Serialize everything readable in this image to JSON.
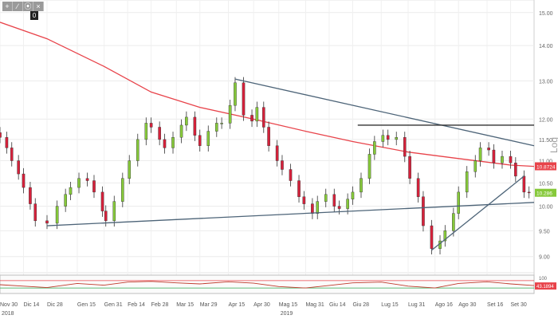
{
  "toolbar": {
    "buttons": [
      {
        "icon": "plus-icon",
        "glyph": "+"
      },
      {
        "icon": "pencil-icon",
        "glyph": "∕"
      },
      {
        "icon": "settings-icon",
        "glyph": "⦿"
      },
      {
        "icon": "close-icon",
        "glyph": "×"
      }
    ],
    "counter": "0"
  },
  "chart_data": {
    "type": "candlestick",
    "scale": "log",
    "ylabel": "Log",
    "ylim": [
      8.7,
      15.4
    ],
    "y_ticks": [
      9.0,
      9.5,
      10.0,
      10.5,
      11.0,
      11.5,
      12.0,
      13.0,
      14.0,
      15.0
    ],
    "y_tick_labels": [
      "9.00",
      "9.50",
      "10.00",
      "10.50",
      "11.00",
      "11.50",
      "12.00",
      "13.00",
      "14.00",
      "15.00"
    ],
    "x_range": [
      "2018-11-30",
      "2019-10-14"
    ],
    "x_ticks": [
      {
        "date": "2018-11-30",
        "label": "Nov 30"
      },
      {
        "date": "2018-12-14",
        "label": "Dic 14"
      },
      {
        "date": "2018-12-28",
        "label": "Dic 28"
      },
      {
        "date": "2019-01-15",
        "label": "Gen 15"
      },
      {
        "date": "2019-01-31",
        "label": "Gen 31"
      },
      {
        "date": "2019-02-14",
        "label": "Feb 14"
      },
      {
        "date": "2019-02-28",
        "label": "Feb 28"
      },
      {
        "date": "2019-03-15",
        "label": "Mar 15"
      },
      {
        "date": "2019-03-29",
        "label": "Mar 29"
      },
      {
        "date": "2019-04-15",
        "label": "Apr 15"
      },
      {
        "date": "2019-04-30",
        "label": "Apr 30"
      },
      {
        "date": "2019-05-15",
        "label": "Mag 15"
      },
      {
        "date": "2019-05-31",
        "label": "Mag 31"
      },
      {
        "date": "2019-06-14",
        "label": "Giu 14"
      },
      {
        "date": "2019-06-28",
        "label": "Giu 28"
      },
      {
        "date": "2019-07-15",
        "label": "Lug 15"
      },
      {
        "date": "2019-07-31",
        "label": "Lug 31"
      },
      {
        "date": "2019-08-16",
        "label": "Ago 16"
      },
      {
        "date": "2019-08-30",
        "label": "Ago 30"
      },
      {
        "date": "2019-09-16",
        "label": "Set 16"
      },
      {
        "date": "2019-09-30",
        "label": "Set 30"
      }
    ],
    "year_labels": [
      {
        "date": "2018-11-30",
        "label": "2018"
      },
      {
        "date": "2019-05-15",
        "label": "2019"
      }
    ],
    "closes": [
      [
        "2018-11-30",
        11.55
      ],
      [
        "2018-12-04",
        11.3
      ],
      [
        "2018-12-07",
        11.0
      ],
      [
        "2018-12-11",
        10.7
      ],
      [
        "2018-12-14",
        10.4
      ],
      [
        "2018-12-18",
        10.05
      ],
      [
        "2018-12-21",
        9.7
      ],
      [
        "2018-12-28",
        9.65
      ],
      [
        "2019-01-03",
        10.0
      ],
      [
        "2019-01-08",
        10.25
      ],
      [
        "2019-01-11",
        10.4
      ],
      [
        "2019-01-16",
        10.6
      ],
      [
        "2019-01-21",
        10.55
      ],
      [
        "2019-01-25",
        10.3
      ],
      [
        "2019-01-30",
        9.9
      ],
      [
        "2019-02-01",
        9.7
      ],
      [
        "2019-02-06",
        10.1
      ],
      [
        "2019-02-11",
        10.6
      ],
      [
        "2019-02-15",
        11.0
      ],
      [
        "2019-02-20",
        11.5
      ],
      [
        "2019-02-25",
        11.9
      ],
      [
        "2019-02-28",
        11.8
      ],
      [
        "2019-03-05",
        11.5
      ],
      [
        "2019-03-08",
        11.3
      ],
      [
        "2019-03-13",
        11.55
      ],
      [
        "2019-03-18",
        11.85
      ],
      [
        "2019-03-21",
        12.05
      ],
      [
        "2019-03-26",
        11.6
      ],
      [
        "2019-03-29",
        11.35
      ],
      [
        "2019-04-03",
        11.7
      ],
      [
        "2019-04-08",
        11.9
      ],
      [
        "2019-04-11",
        11.9
      ],
      [
        "2019-04-16",
        12.35
      ],
      [
        "2019-04-19",
        12.95
      ],
      [
        "2019-04-24",
        12.1
      ],
      [
        "2019-04-29",
        11.95
      ],
      [
        "2019-05-02",
        12.3
      ],
      [
        "2019-05-06",
        11.8
      ],
      [
        "2019-05-09",
        11.35
      ],
      [
        "2019-05-14",
        11.0
      ],
      [
        "2019-05-17",
        10.8
      ],
      [
        "2019-05-22",
        10.55
      ],
      [
        "2019-05-27",
        10.2
      ],
      [
        "2019-05-30",
        10.05
      ],
      [
        "2019-06-04",
        9.85
      ],
      [
        "2019-06-07",
        10.1
      ],
      [
        "2019-06-12",
        10.25
      ],
      [
        "2019-06-17",
        10.0
      ],
      [
        "2019-06-20",
        9.95
      ],
      [
        "2019-06-25",
        10.15
      ],
      [
        "2019-06-28",
        10.3
      ],
      [
        "2019-07-03",
        10.6
      ],
      [
        "2019-07-08",
        11.15
      ],
      [
        "2019-07-11",
        11.45
      ],
      [
        "2019-07-16",
        11.6
      ],
      [
        "2019-07-19",
        11.5
      ],
      [
        "2019-07-24",
        11.55
      ],
      [
        "2019-07-29",
        11.1
      ],
      [
        "2019-08-01",
        10.6
      ],
      [
        "2019-08-06",
        10.2
      ],
      [
        "2019-08-09",
        9.6
      ],
      [
        "2019-08-14",
        9.15
      ],
      [
        "2019-08-19",
        9.3
      ],
      [
        "2019-08-22",
        9.5
      ],
      [
        "2019-08-27",
        9.85
      ],
      [
        "2019-08-30",
        10.3
      ],
      [
        "2019-09-04",
        10.75
      ],
      [
        "2019-09-09",
        11.0
      ],
      [
        "2019-09-12",
        11.3
      ],
      [
        "2019-09-17",
        11.25
      ],
      [
        "2019-09-20",
        10.95
      ],
      [
        "2019-09-25",
        11.1
      ],
      [
        "2019-09-30",
        10.95
      ],
      [
        "2019-10-03",
        10.65
      ],
      [
        "2019-10-08",
        10.3
      ],
      [
        "2019-10-11",
        10.29
      ]
    ],
    "moving_average": {
      "color": "#e8434a",
      "points": [
        [
          "2018-11-30",
          14.7
        ],
        [
          "2018-12-28",
          14.2
        ],
        [
          "2019-01-31",
          13.4
        ],
        [
          "2019-02-28",
          12.7
        ],
        [
          "2019-03-29",
          12.3
        ],
        [
          "2019-04-30",
          12.0
        ],
        [
          "2019-05-31",
          11.7
        ],
        [
          "2019-06-28",
          11.45
        ],
        [
          "2019-07-31",
          11.2
        ],
        [
          "2019-08-30",
          11.05
        ],
        [
          "2019-09-30",
          10.9
        ],
        [
          "2019-10-14",
          10.87
        ]
      ]
    },
    "trendlines": [
      {
        "color": "#4d6478",
        "from": [
          "2018-12-28",
          9.6
        ],
        "to": [
          "2019-10-14",
          10.08
        ]
      },
      {
        "color": "#4d6478",
        "from": [
          "2019-04-19",
          13.05
        ],
        "to": [
          "2019-10-14",
          11.35
        ]
      },
      {
        "color": "#4d6478",
        "from": [
          "2019-08-14",
          9.12
        ],
        "to": [
          "2019-10-08",
          10.65
        ]
      },
      {
        "color": "#333333",
        "from": [
          "2019-07-01",
          11.85
        ],
        "to": [
          "2019-10-14",
          11.85
        ]
      }
    ],
    "price_tags": [
      {
        "label": "10.8724",
        "value": 10.8724,
        "color": "#e8434a"
      },
      {
        "label": "10.286",
        "value": 10.286,
        "color": "#86c93a"
      }
    ],
    "colors": {
      "up": "#86c93a",
      "down": "#d6213b",
      "ma": "#e8434a",
      "trend": "#4d6478"
    },
    "oscillator": {
      "ylim": [
        0,
        100
      ],
      "ticks": [
        {
          "value": 100,
          "label": "100"
        }
      ],
      "value_label": "43.1894",
      "upper_band": 70,
      "lower_band": 30,
      "series": [
        [
          "2018-11-30",
          48
        ],
        [
          "2018-12-14",
          40
        ],
        [
          "2018-12-28",
          32
        ],
        [
          "2019-01-15",
          55
        ],
        [
          "2019-01-31",
          45
        ],
        [
          "2019-02-14",
          62
        ],
        [
          "2019-02-28",
          66
        ],
        [
          "2019-03-15",
          58
        ],
        [
          "2019-03-29",
          52
        ],
        [
          "2019-04-15",
          64
        ],
        [
          "2019-04-30",
          56
        ],
        [
          "2019-05-15",
          38
        ],
        [
          "2019-05-31",
          30
        ],
        [
          "2019-06-14",
          44
        ],
        [
          "2019-06-28",
          58
        ],
        [
          "2019-07-15",
          62
        ],
        [
          "2019-07-31",
          40
        ],
        [
          "2019-08-16",
          30
        ],
        [
          "2019-08-30",
          55
        ],
        [
          "2019-09-16",
          64
        ],
        [
          "2019-09-30",
          52
        ],
        [
          "2019-10-14",
          43
        ]
      ]
    }
  }
}
